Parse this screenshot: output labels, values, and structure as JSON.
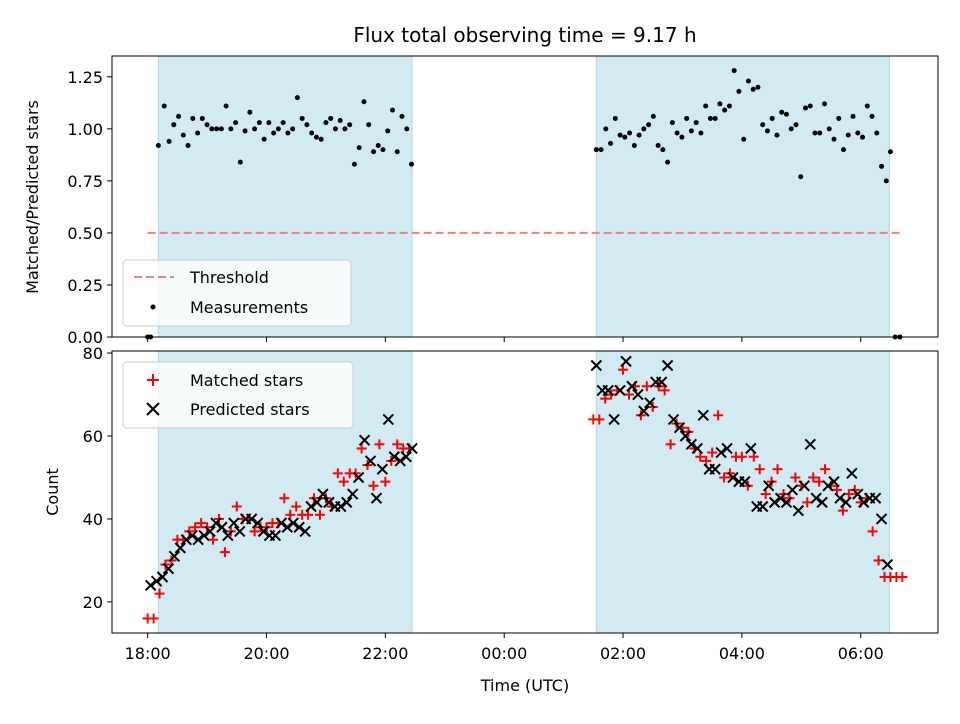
{
  "chart_data": [
    {
      "type": "scatter",
      "title": "Flux total observing time = 9.17 h",
      "xlabel": "",
      "ylabel": "Matched/Predicted stars",
      "ylim": [
        0,
        1.35
      ],
      "yticks": [
        "0.00",
        "0.25",
        "0.50",
        "0.75",
        "1.00",
        "1.25"
      ],
      "ytick_values": [
        0,
        0.25,
        0.5,
        0.75,
        1.0,
        1.25
      ],
      "x_unit": "hours since 18:00 UTC",
      "xlim": [
        -0.6,
        13.3
      ],
      "shaded_intervals": [
        [
          0.18,
          4.45
        ],
        [
          7.55,
          12.48
        ]
      ],
      "shade_color": "#add8e6",
      "threshold": {
        "name": "Threshold",
        "value": 0.5,
        "x_range": [
          0.0,
          12.7
        ],
        "color": "#f08080"
      },
      "legend": {
        "position": "bottom-left",
        "entries": [
          "Threshold",
          "Measurements"
        ]
      },
      "series": [
        {
          "name": "Measurements",
          "color": "#000000",
          "x": [
            0.0,
            0.05,
            0.18,
            0.28,
            0.36,
            0.44,
            0.52,
            0.6,
            0.68,
            0.76,
            0.84,
            0.92,
            1.0,
            1.08,
            1.16,
            1.24,
            1.32,
            1.4,
            1.48,
            1.56,
            1.64,
            1.72,
            1.8,
            1.88,
            1.96,
            2.04,
            2.12,
            2.2,
            2.28,
            2.36,
            2.44,
            2.52,
            2.6,
            2.68,
            2.76,
            2.84,
            2.92,
            3.0,
            3.08,
            3.16,
            3.24,
            3.32,
            3.4,
            3.48,
            3.56,
            3.64,
            3.72,
            3.8,
            3.88,
            3.96,
            4.04,
            4.12,
            4.2,
            4.28,
            4.36,
            4.44,
            7.55,
            7.63,
            7.71,
            7.79,
            7.87,
            7.95,
            8.03,
            8.11,
            8.19,
            8.27,
            8.35,
            8.43,
            8.51,
            8.59,
            8.67,
            8.75,
            8.83,
            8.91,
            8.99,
            9.07,
            9.15,
            9.23,
            9.31,
            9.39,
            9.47,
            9.55,
            9.63,
            9.71,
            9.79,
            9.87,
            9.95,
            10.03,
            10.11,
            10.19,
            10.27,
            10.35,
            10.43,
            10.51,
            10.59,
            10.67,
            10.75,
            10.83,
            10.91,
            10.99,
            11.07,
            11.15,
            11.23,
            11.31,
            11.39,
            11.47,
            11.55,
            11.63,
            11.71,
            11.79,
            11.87,
            11.95,
            12.03,
            12.11,
            12.19,
            12.27,
            12.35,
            12.43,
            12.5,
            12.58,
            12.66
          ],
          "y": [
            0.0,
            0.0,
            0.92,
            1.11,
            0.94,
            1.02,
            1.06,
            0.97,
            0.92,
            1.05,
            0.98,
            1.05,
            1.02,
            1.0,
            1.0,
            1.0,
            1.11,
            1.0,
            1.03,
            0.84,
            0.99,
            1.08,
            1.0,
            1.03,
            0.95,
            1.03,
            0.98,
            1.0,
            1.03,
            0.98,
            1.0,
            1.15,
            1.05,
            1.02,
            0.98,
            0.96,
            0.95,
            1.03,
            1.05,
            1.0,
            1.04,
            1.0,
            1.02,
            0.83,
            0.91,
            1.13,
            1.02,
            0.89,
            0.92,
            0.9,
            0.99,
            1.09,
            0.89,
            1.06,
            1.0,
            0.83,
            0.9,
            0.9,
            1.0,
            0.93,
            1.05,
            0.97,
            0.96,
            0.98,
            0.92,
            0.97,
            1.0,
            1.02,
            1.06,
            0.92,
            0.9,
            0.84,
            1.03,
            0.98,
            0.96,
            1.05,
            0.99,
            1.03,
            0.98,
            1.11,
            1.05,
            1.05,
            1.12,
            1.09,
            1.11,
            1.28,
            1.18,
            0.95,
            1.23,
            1.19,
            1.2,
            1.02,
            0.99,
            1.05,
            0.97,
            1.08,
            1.07,
            1.0,
            1.02,
            0.77,
            1.1,
            1.11,
            0.98,
            0.98,
            1.12,
            1.0,
            0.95,
            1.05,
            0.9,
            0.97,
            1.06,
            0.98,
            0.96,
            1.11,
            1.06,
            0.98,
            0.82,
            0.75,
            0.89,
            0.0,
            0.0
          ]
        }
      ]
    },
    {
      "type": "scatter",
      "title": "",
      "xlabel": "Time (UTC)",
      "ylabel": "Count",
      "ylim": [
        12.5,
        80.5
      ],
      "yticks": [
        "20",
        "40",
        "60",
        "80"
      ],
      "ytick_values": [
        20,
        40,
        60,
        80
      ],
      "x_unit": "hours since 18:00 UTC",
      "xlim": [
        -0.6,
        13.3
      ],
      "xticks": [
        "18:00",
        "20:00",
        "22:00",
        "00:00",
        "02:00",
        "04:00",
        "06:00"
      ],
      "xtick_values": [
        0,
        2,
        4,
        6,
        8,
        10,
        12
      ],
      "shaded_intervals": [
        [
          0.18,
          4.45
        ],
        [
          7.55,
          12.48
        ]
      ],
      "shade_color": "#add8e6",
      "legend": {
        "position": "top-left",
        "entries": [
          "Matched stars",
          "Predicted stars"
        ]
      },
      "series": [
        {
          "name": "Matched stars",
          "color": "#ff0000",
          "marker": "+",
          "x": [
            0.0,
            0.1,
            0.2,
            0.3,
            0.4,
            0.5,
            0.6,
            0.7,
            0.8,
            0.9,
            1.0,
            1.1,
            1.2,
            1.3,
            1.4,
            1.5,
            1.6,
            1.7,
            1.8,
            1.9,
            2.0,
            2.1,
            2.2,
            2.3,
            2.4,
            2.5,
            2.6,
            2.7,
            2.8,
            2.9,
            3.0,
            3.1,
            3.2,
            3.3,
            3.4,
            3.5,
            3.6,
            3.7,
            3.8,
            3.9,
            4.0,
            4.1,
            4.2,
            4.3,
            4.4,
            7.5,
            7.6,
            7.7,
            7.8,
            7.9,
            8.0,
            8.1,
            8.2,
            8.3,
            8.4,
            8.5,
            8.6,
            8.7,
            8.8,
            8.9,
            9.0,
            9.1,
            9.2,
            9.3,
            9.4,
            9.5,
            9.6,
            9.7,
            9.8,
            9.9,
            10.0,
            10.1,
            10.2,
            10.3,
            10.4,
            10.5,
            10.6,
            10.7,
            10.8,
            10.9,
            11.0,
            11.1,
            11.2,
            11.3,
            11.4,
            11.5,
            11.6,
            11.7,
            11.8,
            11.9,
            12.0,
            12.1,
            12.2,
            12.3,
            12.4,
            12.5,
            12.6,
            12.7
          ],
          "y": [
            16,
            16,
            22,
            29,
            30,
            35,
            35,
            37,
            38,
            39,
            38,
            35,
            40,
            32,
            37,
            43,
            40,
            40,
            37,
            38,
            38,
            39,
            39,
            45,
            41,
            43,
            41,
            41,
            45,
            41,
            45,
            43,
            51,
            49,
            51,
            51,
            57,
            53,
            48,
            58,
            49,
            54,
            58,
            57,
            57,
            64,
            64,
            69,
            70,
            71,
            76,
            70,
            72,
            65,
            72,
            67,
            72,
            71,
            58,
            63,
            62,
            61,
            57,
            55,
            54,
            56,
            65,
            50,
            51,
            55,
            55,
            48,
            55,
            52,
            46,
            49,
            52,
            46,
            45,
            50,
            48,
            44,
            50,
            49,
            52,
            48,
            47,
            42,
            46,
            47,
            44,
            45,
            37,
            30,
            26,
            26,
            26,
            26
          ]
        },
        {
          "name": "Predicted stars",
          "color": "#000000",
          "marker": "x",
          "x": [
            0.05,
            0.15,
            0.25,
            0.35,
            0.45,
            0.55,
            0.65,
            0.75,
            0.85,
            0.95,
            1.05,
            1.15,
            1.25,
            1.35,
            1.45,
            1.55,
            1.65,
            1.75,
            1.85,
            1.95,
            2.05,
            2.15,
            2.25,
            2.35,
            2.45,
            2.55,
            2.65,
            2.75,
            2.85,
            2.95,
            3.05,
            3.15,
            3.25,
            3.35,
            3.45,
            3.55,
            3.65,
            3.75,
            3.85,
            3.95,
            4.05,
            4.15,
            4.25,
            4.35,
            4.45,
            7.55,
            7.65,
            7.75,
            7.85,
            7.95,
            8.05,
            8.15,
            8.25,
            8.35,
            8.45,
            8.55,
            8.65,
            8.75,
            8.85,
            8.95,
            9.05,
            9.15,
            9.25,
            9.35,
            9.45,
            9.55,
            9.65,
            9.75,
            9.85,
            9.95,
            10.05,
            10.15,
            10.25,
            10.35,
            10.45,
            10.55,
            10.65,
            10.75,
            10.85,
            10.95,
            11.05,
            11.15,
            11.25,
            11.35,
            11.45,
            11.55,
            11.65,
            11.75,
            11.85,
            11.95,
            12.05,
            12.15,
            12.25,
            12.35,
            12.45
          ],
          "y": [
            24,
            25,
            26,
            28,
            31,
            33,
            35,
            36,
            35,
            36,
            37,
            39,
            38,
            36,
            39,
            37,
            40,
            40,
            39,
            37,
            36,
            36,
            39,
            38,
            39,
            38,
            37,
            43,
            44,
            46,
            44,
            43,
            43,
            44,
            46,
            50,
            59,
            54,
            45,
            52,
            64,
            55,
            54,
            55,
            57,
            77,
            71,
            71,
            64,
            71,
            78,
            72,
            70,
            66,
            68,
            73,
            73,
            77,
            64,
            62,
            60,
            58,
            57,
            65,
            52,
            52,
            56,
            57,
            50,
            49,
            49,
            57,
            43,
            43,
            48,
            44,
            45,
            44,
            47,
            42,
            48,
            58,
            45,
            44,
            48,
            49,
            45,
            44,
            51,
            46,
            44,
            45,
            45,
            40,
            29
          ]
        }
      ]
    }
  ]
}
